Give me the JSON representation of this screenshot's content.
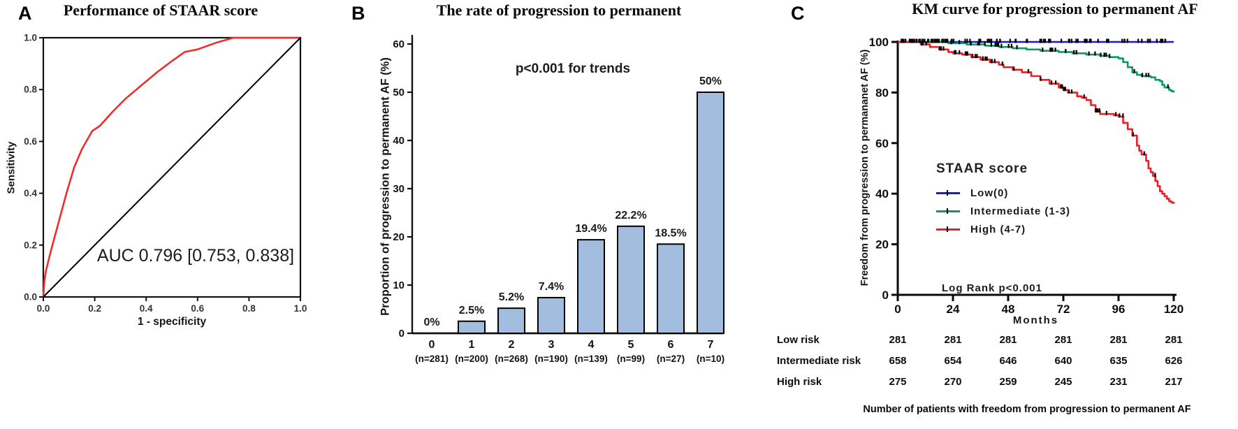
{
  "chart_data": [
    {
      "panel": "A",
      "type": "line",
      "title": "Performance of STAAR score",
      "xlabel": "1 - specificity",
      "ylabel": "Sensitivity",
      "annotation": "AUC 0.796 [0.753, 0.838]",
      "xlim": [
        0,
        1
      ],
      "ylim": [
        0,
        1
      ],
      "xticks": [
        "0.0",
        "0.2",
        "0.4",
        "0.6",
        "0.8",
        "1.0"
      ],
      "yticks": [
        "0.0",
        "0.2",
        "0.4",
        "0.6",
        "0.8",
        "1.0"
      ],
      "series": [
        {
          "name": "STAAR score ROC curve",
          "color": "#ee2e2b",
          "x": [
            0,
            0.004,
            0.01,
            0.03,
            0.06,
            0.09,
            0.12,
            0.15,
            0.19,
            0.22,
            0.27,
            0.32,
            0.38,
            0.44,
            0.5,
            0.55,
            0.6,
            0.67,
            0.74,
            1.0
          ],
          "y": [
            0,
            0.06,
            0.1,
            0.18,
            0.29,
            0.4,
            0.5,
            0.57,
            0.64,
            0.66,
            0.715,
            0.765,
            0.815,
            0.865,
            0.91,
            0.945,
            0.955,
            0.98,
            1.0,
            1.0
          ]
        },
        {
          "name": "Reference line",
          "color": "#000000",
          "x": [
            0,
            1
          ],
          "y": [
            0,
            1
          ]
        }
      ]
    },
    {
      "panel": "B",
      "type": "bar",
      "title": "The rate of progression to permanent",
      "ylabel": "Proportion of progression to permanent AF (%)",
      "annotation": "p<0.001 for trends",
      "ylim": [
        0,
        60
      ],
      "yticks": [
        0,
        10,
        20,
        30,
        40,
        50,
        60
      ],
      "categories": [
        "0",
        "1",
        "2",
        "3",
        "4",
        "5",
        "6",
        "7"
      ],
      "group_sizes": [
        "(n=281)",
        "(n=200)",
        "(n=268)",
        "(n=190)",
        "(n=139)",
        "(n=99)",
        "(n=27)",
        "(n=10)"
      ],
      "values": [
        0,
        2.5,
        5.2,
        7.4,
        19.4,
        22.2,
        18.5,
        50
      ],
      "value_labels": [
        "0%",
        "2.5%",
        "5.2%",
        "7.4%",
        "19.4%",
        "22.2%",
        "18.5%",
        "50%"
      ],
      "bar_color": "#a2bddd"
    },
    {
      "panel": "C",
      "type": "line",
      "subtype": "kaplan-meier",
      "title": "KM curve for progression to permanent AF",
      "xlabel": "Months",
      "ylabel": "Freedom from progression to permananet AF (%)",
      "annotation": "Log Rank p<0.001",
      "legend_title": "STAAR score",
      "xlim": [
        0,
        120
      ],
      "xticks": [
        0,
        24,
        48,
        72,
        96,
        120
      ],
      "ylim": [
        0,
        100
      ],
      "yticks": [
        0,
        20,
        40,
        60,
        80,
        100
      ],
      "series": [
        {
          "name": "Low(0)",
          "color": "#1b1bcd",
          "steps": [
            [
              0,
              100
            ],
            [
              120,
              100
            ]
          ]
        },
        {
          "name": "Intermediate (1-3)",
          "color": "#0a9b60",
          "steps": [
            [
              0,
              100
            ],
            [
              18,
              100
            ],
            [
              22,
              99.5
            ],
            [
              30,
              99
            ],
            [
              38,
              98.5
            ],
            [
              44,
              98
            ],
            [
              50,
              97.5
            ],
            [
              56,
              97
            ],
            [
              62,
              96.5
            ],
            [
              70,
              96
            ],
            [
              76,
              95.5
            ],
            [
              82,
              95
            ],
            [
              88,
              94.5
            ],
            [
              92,
              94
            ],
            [
              96,
              93.5
            ],
            [
              98,
              92
            ],
            [
              100,
              90
            ],
            [
              102,
              88
            ],
            [
              104,
              87
            ],
            [
              106,
              86.5
            ],
            [
              110,
              86
            ],
            [
              112,
              85
            ],
            [
              114,
              84.5
            ],
            [
              115,
              83
            ],
            [
              116,
              82
            ],
            [
              118,
              81
            ],
            [
              119,
              80.5
            ],
            [
              120,
              80
            ]
          ]
        },
        {
          "name": "High (4-7)",
          "color": "#ee1c23",
          "steps": [
            [
              0,
              100
            ],
            [
              6,
              100
            ],
            [
              10,
              99
            ],
            [
              14,
              98
            ],
            [
              18,
              97
            ],
            [
              22,
              96
            ],
            [
              24,
              95.5
            ],
            [
              28,
              95
            ],
            [
              32,
              94
            ],
            [
              36,
              93
            ],
            [
              40,
              92
            ],
            [
              44,
              91
            ],
            [
              46,
              90
            ],
            [
              50,
              89
            ],
            [
              54,
              88
            ],
            [
              58,
              86.5
            ],
            [
              62,
              85
            ],
            [
              66,
              83.5
            ],
            [
              70,
              82
            ],
            [
              72,
              81
            ],
            [
              74,
              80
            ],
            [
              78,
              78.5
            ],
            [
              80,
              78
            ],
            [
              82,
              77
            ],
            [
              84,
              75
            ],
            [
              86,
              72.5
            ],
            [
              88,
              71.5
            ],
            [
              94,
              71
            ],
            [
              96,
              70.5
            ],
            [
              98,
              68
            ],
            [
              100,
              65.5
            ],
            [
              102,
              63
            ],
            [
              104,
              59
            ],
            [
              105,
              57
            ],
            [
              106,
              55.5
            ],
            [
              108,
              53
            ],
            [
              109,
              50
            ],
            [
              110,
              48.5
            ],
            [
              111,
              47
            ],
            [
              112,
              45
            ],
            [
              113,
              43
            ],
            [
              114,
              41
            ],
            [
              115,
              40
            ],
            [
              116,
              39
            ],
            [
              117,
              38
            ],
            [
              118,
              37
            ],
            [
              119,
              36.5
            ],
            [
              120,
              36
            ]
          ]
        }
      ],
      "risk_table": {
        "caption": "Number of patients with freedom from progression to permanent AF",
        "columns": [
          0,
          24,
          48,
          72,
          96,
          120
        ],
        "row_labels": [
          "Low risk",
          "Intermediate risk",
          "High risk"
        ],
        "rows": [
          [
            281,
            281,
            281,
            281,
            281,
            281
          ],
          [
            658,
            654,
            646,
            640,
            635,
            626
          ],
          [
            275,
            270,
            259,
            245,
            231,
            217
          ]
        ]
      }
    }
  ]
}
